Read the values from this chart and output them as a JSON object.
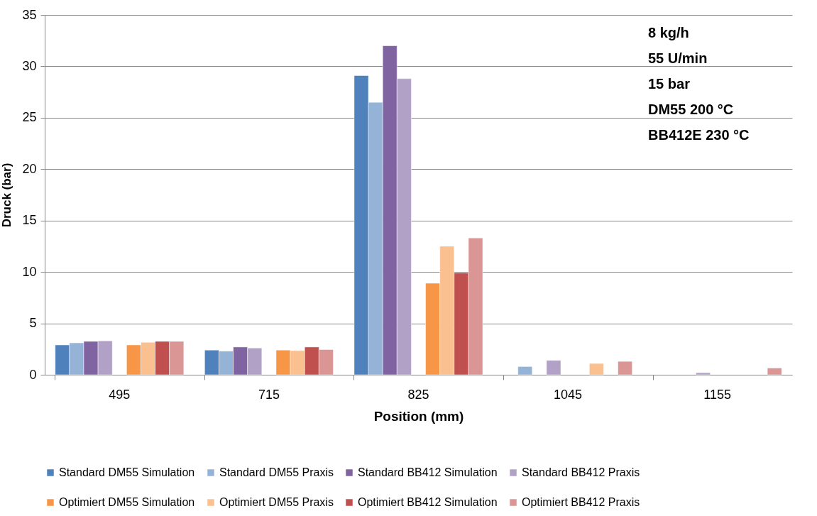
{
  "chart_data": {
    "type": "bar",
    "xlabel": "Position (mm)",
    "ylabel": "Druck (bar)",
    "categories": [
      "495",
      "715",
      "825",
      "1045",
      "1155"
    ],
    "series": [
      {
        "name": "Standard DM55 Simulation",
        "color": "#4f81bd",
        "values": [
          2.9,
          2.4,
          29.1,
          null,
          null
        ]
      },
      {
        "name": "Standard DM55 Praxis",
        "color": "#95b3d7",
        "values": [
          3.1,
          2.3,
          26.5,
          0.8,
          null
        ]
      },
      {
        "name": "Standard BB412 Simulation",
        "color": "#8064a2",
        "values": [
          3.25,
          2.7,
          32.0,
          null,
          null
        ]
      },
      {
        "name": "Standard BB412 Praxis",
        "color": "#b2a1c7",
        "values": [
          3.3,
          2.6,
          28.8,
          1.4,
          0.2
        ]
      },
      {
        "name": "Optimiert DM55 Simulation",
        "color": "#f79646",
        "values": [
          2.9,
          2.4,
          8.9,
          null,
          null
        ]
      },
      {
        "name": "Optimiert DM55 Praxis",
        "color": "#fac090",
        "values": [
          3.15,
          2.35,
          12.5,
          1.1,
          null
        ]
      },
      {
        "name": "Optimiert BB412 Simulation",
        "color": "#c0504d",
        "values": [
          3.25,
          2.7,
          9.9,
          null,
          null
        ]
      },
      {
        "name": "Optimiert BB412 Praxis",
        "color": "#d99694",
        "values": [
          3.25,
          2.45,
          13.3,
          1.3,
          0.65
        ]
      }
    ],
    "ylim": [
      0,
      35
    ],
    "yticks": [
      0,
      5,
      10,
      15,
      20,
      25,
      30,
      35
    ],
    "grid": "y",
    "legend": "bottom",
    "annotations": [
      "8 kg/h",
      "55 U/min",
      "15 bar",
      "DM55 200 °C",
      "BB412E 230 °C"
    ]
  }
}
